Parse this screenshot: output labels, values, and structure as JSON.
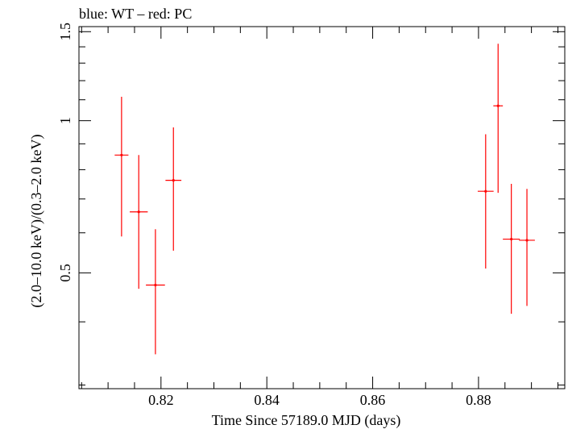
{
  "chart_data": {
    "type": "scatter",
    "title": "blue: WT – red: PC",
    "xlabel": "Time Since 57189.0 MJD (days)",
    "ylabel": "(2.0–10.0 keV)/(0.3–2.0 keV)",
    "xlim": [
      0.8045,
      0.8963
    ],
    "ylim": [
      0.295,
      1.535
    ],
    "y_log_scale": true,
    "grid": false,
    "x_ticks": [
      0.82,
      0.84,
      0.86,
      0.88
    ],
    "x_tick_labels": [
      "0.82",
      "0.84",
      "0.86",
      "0.88"
    ],
    "y_ticks": [
      0.5,
      1.0,
      1.5
    ],
    "y_tick_labels": [
      "0.5",
      "1",
      "1.5"
    ],
    "colors": {
      "axis": "#000000",
      "pc": "#ff0000",
      "wt": "#0000ff"
    },
    "series": [
      {
        "name": "PC",
        "color": "#ff0000",
        "points": [
          {
            "x": 0.81255,
            "x_err": 0.0013,
            "y": 0.855,
            "y_lo": 0.59,
            "y_hi": 1.115
          },
          {
            "x": 0.8158,
            "x_err": 0.0017,
            "y": 0.66,
            "y_lo": 0.465,
            "y_hi": 0.855
          },
          {
            "x": 0.81895,
            "x_err": 0.0018,
            "y": 0.473,
            "y_lo": 0.345,
            "y_hi": 0.61
          },
          {
            "x": 0.82235,
            "x_err": 0.0015,
            "y": 0.762,
            "y_lo": 0.553,
            "y_hi": 0.97
          },
          {
            "x": 0.88135,
            "x_err": 0.0015,
            "y": 0.725,
            "y_lo": 0.51,
            "y_hi": 0.94
          },
          {
            "x": 0.8837,
            "x_err": 0.0009,
            "y": 1.07,
            "y_lo": 0.72,
            "y_hi": 1.42
          },
          {
            "x": 0.8862,
            "x_err": 0.0016,
            "y": 0.583,
            "y_lo": 0.415,
            "y_hi": 0.75
          },
          {
            "x": 0.88915,
            "x_err": 0.0015,
            "y": 0.58,
            "y_lo": 0.43,
            "y_hi": 0.733
          }
        ]
      }
    ]
  }
}
